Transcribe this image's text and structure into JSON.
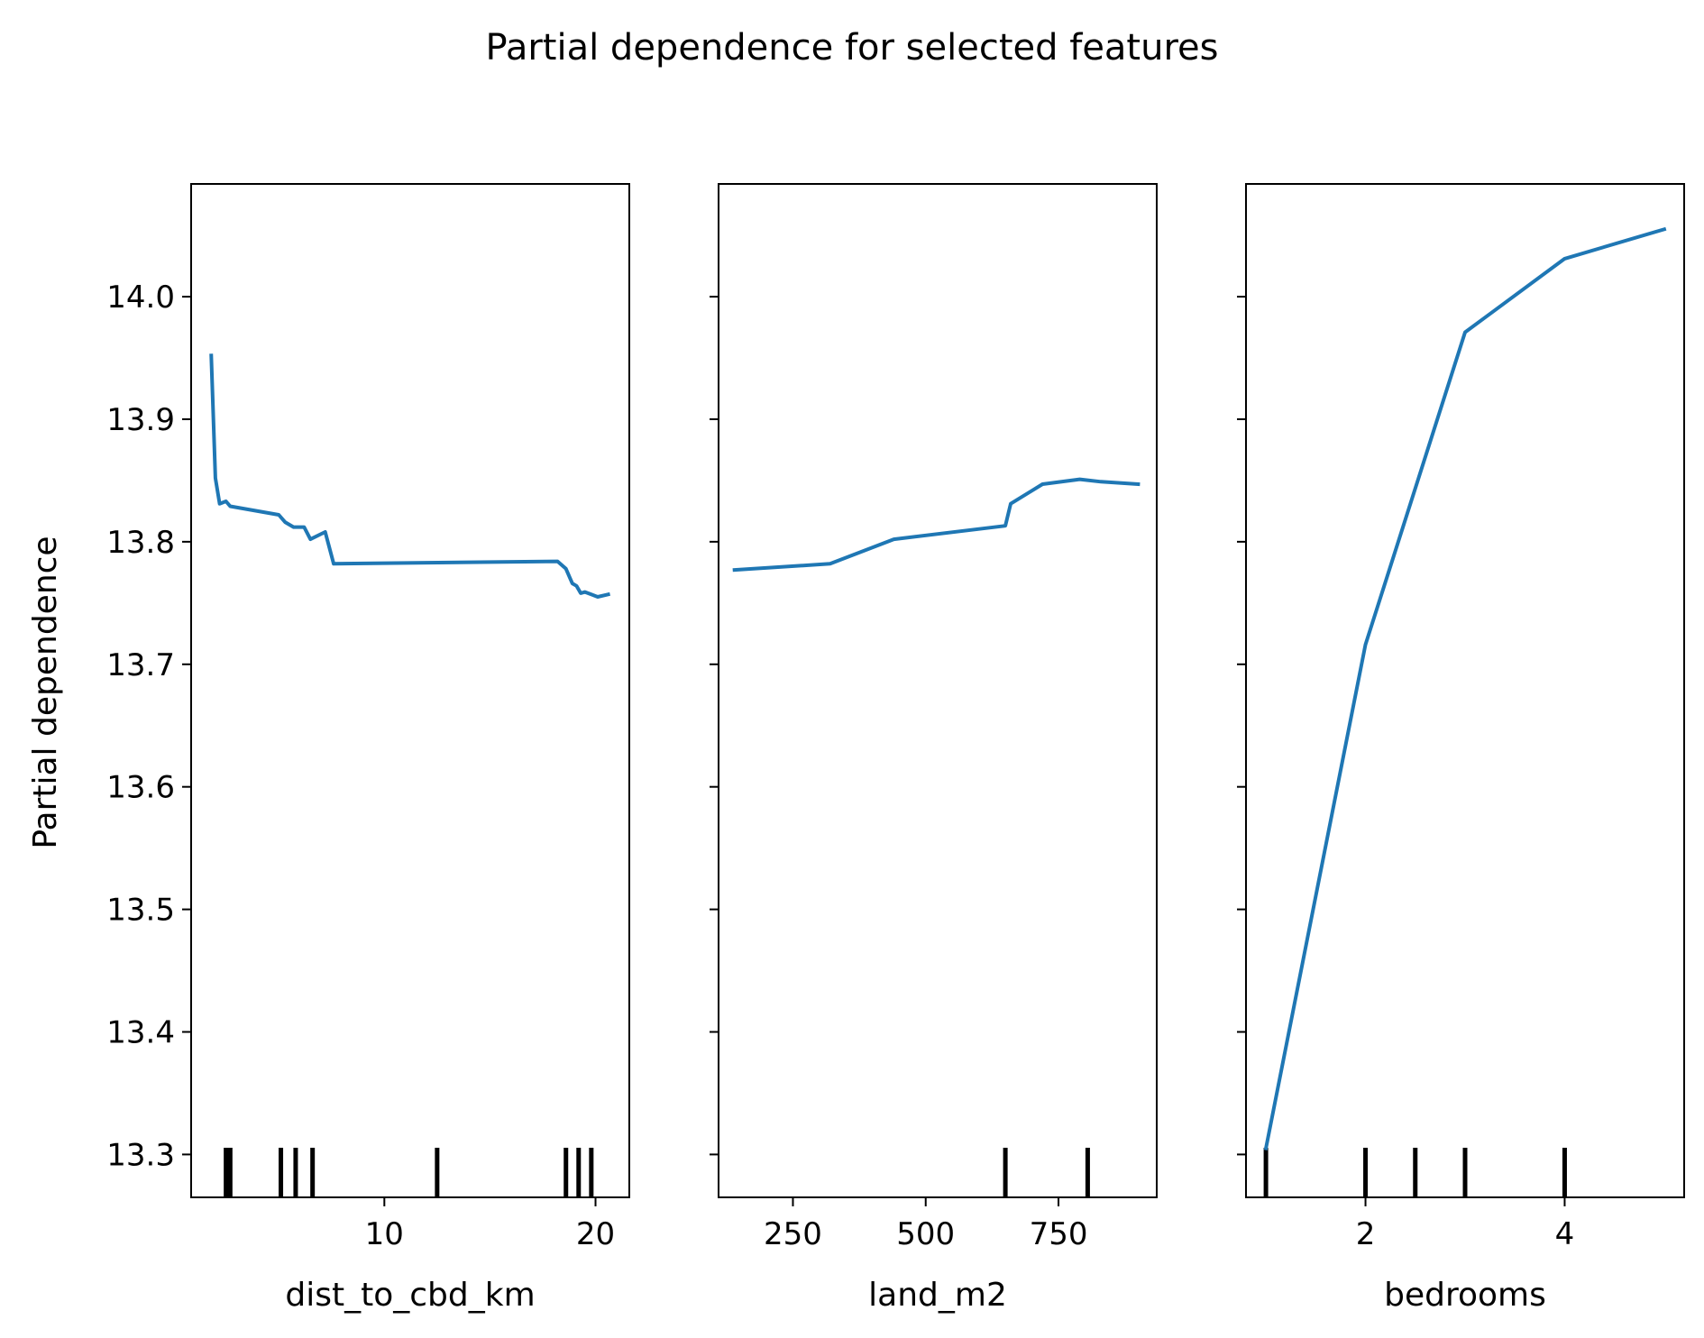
{
  "chart_data": {
    "type": "line",
    "title": "Partial dependence for selected features",
    "ylabel": "Partial dependence",
    "ylim": [
      13.265,
      14.092
    ],
    "yticks": [
      "13.3",
      "13.4",
      "13.5",
      "13.6",
      "13.7",
      "13.8",
      "13.9",
      "14.0"
    ],
    "yticks_values": [
      13.3,
      13.4,
      13.5,
      13.6,
      13.7,
      13.8,
      13.9,
      14.0
    ],
    "line_color": "#1f77b4",
    "rug_color": "#000000",
    "grid": false,
    "panels": [
      {
        "xlabel": "dist_to_cbd_km",
        "xlim": [
          0.85,
          21.6
        ],
        "xticks": [
          "10",
          "20"
        ],
        "xticks_values": [
          10,
          20
        ],
        "x": [
          1.8,
          2.0,
          2.2,
          2.5,
          2.7,
          5.0,
          5.3,
          5.7,
          6.2,
          6.5,
          7.2,
          7.6,
          18.2,
          18.6,
          18.9,
          19.1,
          19.3,
          19.5,
          19.8,
          20.1,
          20.6
        ],
        "y": [
          13.952,
          13.852,
          13.831,
          13.833,
          13.829,
          13.822,
          13.816,
          13.812,
          13.812,
          13.802,
          13.808,
          13.782,
          13.784,
          13.778,
          13.766,
          13.764,
          13.758,
          13.759,
          13.757,
          13.755,
          13.757
        ],
        "rug": [
          2.5,
          2.7,
          5.1,
          5.8,
          6.6,
          12.5,
          18.6,
          19.2,
          19.8
        ]
      },
      {
        "xlabel": "land_m2",
        "xlim": [
          110,
          935
        ],
        "xticks": [
          "250",
          "500",
          "750"
        ],
        "xticks_values": [
          250,
          500,
          750
        ],
        "x": [
          140,
          320,
          440,
          650,
          660,
          720,
          790,
          830,
          900
        ],
        "y": [
          13.777,
          13.782,
          13.802,
          13.813,
          13.831,
          13.847,
          13.851,
          13.849,
          13.847
        ],
        "rug": [
          650,
          805
        ]
      },
      {
        "xlabel": "bedrooms",
        "xlim": [
          0.8,
          5.2
        ],
        "xticks": [
          "2",
          "4"
        ],
        "xticks_values": [
          2,
          4
        ],
        "x": [
          1,
          2,
          3,
          4,
          5
        ],
        "y": [
          13.305,
          13.716,
          13.971,
          14.031,
          14.055
        ],
        "rug": [
          1,
          2,
          2.5,
          3,
          4
        ]
      }
    ]
  }
}
